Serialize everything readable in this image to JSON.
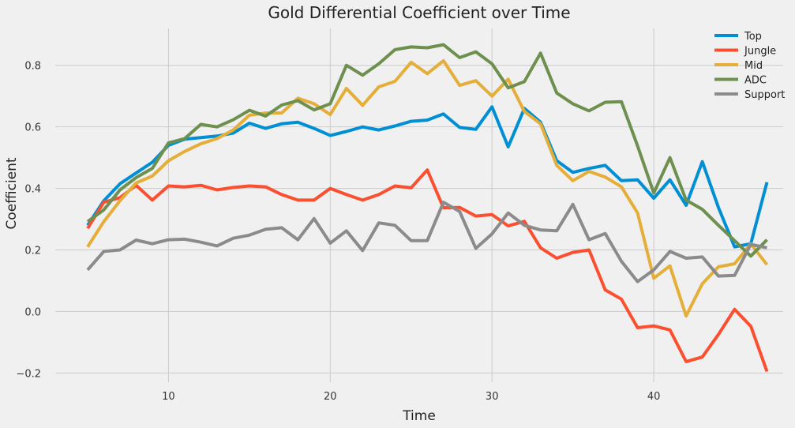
{
  "chart_data": {
    "type": "line",
    "title": "Gold Differential Coefficient over Time",
    "xlabel": "Time",
    "ylabel": "Coefficient",
    "xlim": [
      3,
      48
    ],
    "ylim": [
      -0.23,
      0.92
    ],
    "xticks": [
      10,
      20,
      30,
      40
    ],
    "yticks": [
      -0.2,
      0.0,
      0.2,
      0.4,
      0.6,
      0.8
    ],
    "ytick_labels": [
      "−0.2",
      "0.0",
      "0.2",
      "0.4",
      "0.6",
      "0.8"
    ],
    "grid": true,
    "legend_position": "top-right",
    "x": [
      5,
      6,
      7,
      8,
      9,
      10,
      11,
      12,
      13,
      14,
      15,
      16,
      17,
      18,
      19,
      20,
      21,
      22,
      23,
      24,
      25,
      26,
      27,
      28,
      29,
      30,
      31,
      32,
      33,
      34,
      35,
      36,
      37,
      38,
      39,
      40,
      41,
      42,
      43,
      44,
      45,
      46,
      47
    ],
    "series": [
      {
        "name": "Top",
        "color": "#008fd5",
        "values": [
          0.28,
          0.36,
          0.415,
          0.45,
          0.485,
          0.54,
          0.56,
          0.565,
          0.57,
          0.58,
          0.612,
          0.595,
          0.61,
          0.615,
          0.595,
          0.572,
          0.585,
          0.6,
          0.59,
          0.603,
          0.618,
          0.622,
          0.642,
          0.598,
          0.592,
          0.665,
          0.535,
          0.66,
          0.615,
          0.49,
          0.452,
          0.465,
          0.475,
          0.425,
          0.428,
          0.368,
          0.428,
          0.345,
          0.487,
          0.338,
          0.21,
          0.22,
          0.42
        ]
      },
      {
        "name": "Jungle",
        "color": "#fc4f30",
        "values": [
          0.27,
          0.355,
          0.37,
          0.41,
          0.362,
          0.408,
          0.405,
          0.41,
          0.395,
          0.403,
          0.408,
          0.405,
          0.38,
          0.362,
          0.362,
          0.4,
          0.38,
          0.362,
          0.38,
          0.408,
          0.402,
          0.46,
          0.337,
          0.338,
          0.31,
          0.315,
          0.278,
          0.293,
          0.207,
          0.173,
          0.192,
          0.2,
          0.07,
          0.04,
          -0.053,
          -0.047,
          -0.06,
          -0.163,
          -0.148,
          -0.075,
          0.007,
          -0.048,
          -0.195
        ]
      },
      {
        "name": "Mid",
        "color": "#e5ae38",
        "values": [
          0.21,
          0.292,
          0.36,
          0.418,
          0.44,
          0.49,
          0.52,
          0.545,
          0.562,
          0.59,
          0.638,
          0.645,
          0.645,
          0.693,
          0.675,
          0.64,
          0.725,
          0.67,
          0.73,
          0.748,
          0.81,
          0.773,
          0.815,
          0.735,
          0.75,
          0.7,
          0.755,
          0.65,
          0.61,
          0.475,
          0.425,
          0.455,
          0.437,
          0.405,
          0.32,
          0.108,
          0.148,
          -0.015,
          0.09,
          0.145,
          0.155,
          0.22,
          0.152
        ]
      },
      {
        "name": "ADC",
        "color": "#6d904f",
        "values": [
          0.292,
          0.33,
          0.395,
          0.435,
          0.465,
          0.548,
          0.562,
          0.608,
          0.6,
          0.623,
          0.654,
          0.635,
          0.671,
          0.685,
          0.655,
          0.675,
          0.8,
          0.768,
          0.805,
          0.851,
          0.86,
          0.857,
          0.867,
          0.825,
          0.844,
          0.805,
          0.727,
          0.747,
          0.84,
          0.71,
          0.675,
          0.652,
          0.68,
          0.682,
          0.538,
          0.385,
          0.5,
          0.362,
          0.332,
          0.28,
          0.23,
          0.18,
          0.233
        ]
      },
      {
        "name": "Support",
        "color": "#8b8b8b",
        "values": [
          0.135,
          0.195,
          0.2,
          0.232,
          0.22,
          0.233,
          0.235,
          0.225,
          0.213,
          0.238,
          0.248,
          0.267,
          0.272,
          0.233,
          0.302,
          0.222,
          0.262,
          0.198,
          0.288,
          0.28,
          0.23,
          0.23,
          0.355,
          0.325,
          0.205,
          0.252,
          0.32,
          0.28,
          0.265,
          0.262,
          0.348,
          0.233,
          0.253,
          0.163,
          0.097,
          0.135,
          0.195,
          0.173,
          0.177,
          0.115,
          0.117,
          0.218,
          0.207
        ]
      }
    ]
  }
}
